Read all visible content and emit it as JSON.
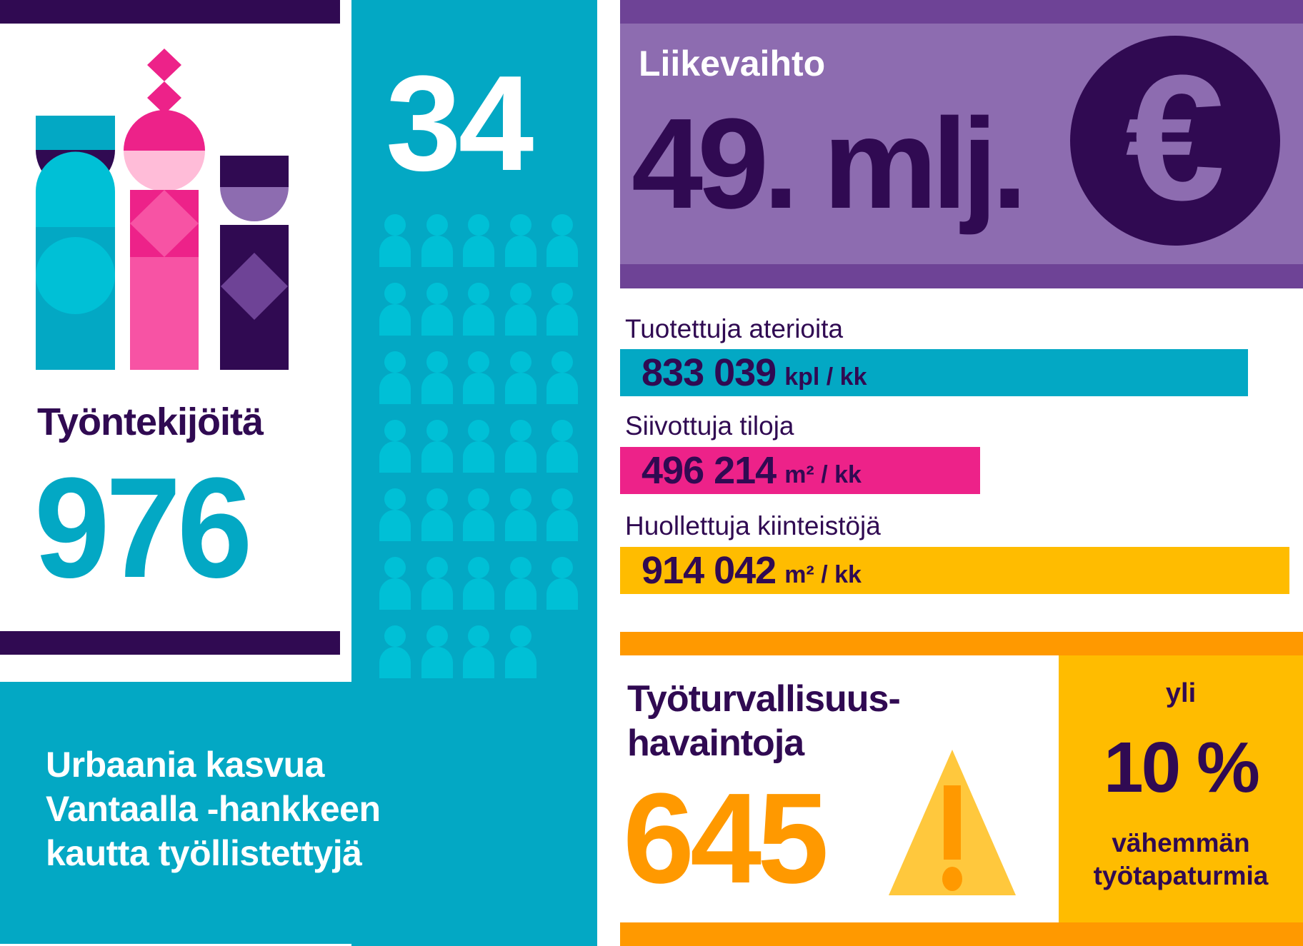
{
  "colors": {
    "dark_purple": "#300a52",
    "teal": "#03a8c4",
    "light_teal": "#00c0d6",
    "purple": "#8d6cb0",
    "purple_band": "#6e4396",
    "pink": "#ed2289",
    "yellow": "#ffbc00",
    "orange": "#ff9900"
  },
  "employees": {
    "title": "Työntekijöitä",
    "value": "976"
  },
  "employment_project": {
    "value": "34",
    "people_icon_count": 34,
    "text_lines": [
      "Urbaania kasvua",
      "Vantaalla -hankkeen",
      "kautta työllistettyjä"
    ]
  },
  "revenue": {
    "label": "Liikevaihto",
    "value": "49. mlj.",
    "icon": "euro-icon",
    "icon_glyph": "€"
  },
  "stats": [
    {
      "label": "Tuotettuja aterioita",
      "value": "833 039",
      "unit": "kpl / kk",
      "color": "#03a8c4"
    },
    {
      "label": "Siivottuja tiloja",
      "value": "496 214",
      "unit": "m² / kk",
      "color": "#ed2289"
    },
    {
      "label": "Huollettuja kiinteistöjä",
      "value": "914 042",
      "unit": "m² / kk",
      "color": "#ffbc00"
    }
  ],
  "safety": {
    "title_line1": "Työturvallisuus-",
    "title_line2": "havaintoja",
    "value": "645",
    "icon": "warning-icon"
  },
  "accidents": {
    "prefix": "yli",
    "value": "10 %",
    "line1": "vähemmän",
    "line2": "työtapaturmia"
  }
}
